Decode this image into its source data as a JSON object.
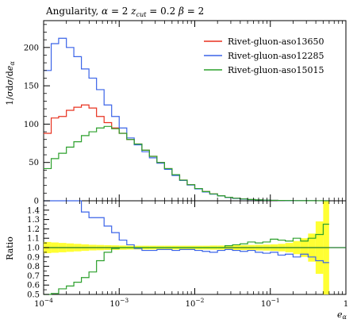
{
  "chart_data": {
    "type": "line",
    "title": "Angularity, α = 2 z_cut = 0.2 β = 2",
    "xlabel": "e_α",
    "ylabel": "1/σ dσ/de_α",
    "ratio_ylabel": "Ratio",
    "xscale": "log",
    "xlim": [
      0.0001,
      1
    ],
    "ylim": [
      0,
      235
    ],
    "ratio_ylim": [
      0.5,
      1.5
    ],
    "x_ticks": [
      "10^-4",
      "10^-3",
      "10^-2",
      "10^-1",
      "1"
    ],
    "y_ticks": [
      0,
      50,
      100,
      150,
      200
    ],
    "ratio_ticks": [
      "0.5",
      "0.6",
      "0.7",
      "0.8",
      "0.9",
      "1.0",
      "1.1",
      "1.2",
      "1.3",
      "1.4"
    ],
    "legend_position": "top-right",
    "bin_edges": [
      0.0001,
      0.000126,
      0.000158,
      0.0002,
      0.000251,
      0.000316,
      0.000398,
      0.000501,
      0.000631,
      0.000794,
      0.001,
      0.00126,
      0.00158,
      0.002,
      0.00251,
      0.00316,
      0.00398,
      0.00501,
      0.00631,
      0.00794,
      0.01,
      0.0126,
      0.0158,
      0.02,
      0.0251,
      0.0316,
      0.0398,
      0.0501,
      0.0631,
      0.0794,
      0.1,
      0.126,
      0.158,
      0.2,
      0.251,
      0.316,
      0.398,
      0.501,
      0.6
    ],
    "series": [
      {
        "name": "Rivet-gluon-aso13650",
        "color": "#e8311f",
        "values": [
          88,
          108,
          110,
          118,
          122,
          125,
          121,
          110,
          102,
          95,
          88,
          80,
          74,
          66,
          58,
          50,
          42,
          34,
          27,
          21,
          16,
          12,
          9,
          6.5,
          4.5,
          3.2,
          2.3,
          1.6,
          1.1,
          0.8,
          0.55,
          0.4,
          0.28,
          0.2,
          0.14,
          0.1,
          0.07,
          0.04
        ]
      },
      {
        "name": "Rivet-gluon-aso12285",
        "color": "#3b64e8",
        "values": [
          170,
          205,
          212,
          200,
          188,
          172,
          160,
          145,
          125,
          110,
          95,
          82,
          73,
          64,
          56,
          49,
          41,
          33,
          26.5,
          20.5,
          15.5,
          11.5,
          8.6,
          6.3,
          4.4,
          3.1,
          2.2,
          1.55,
          1.05,
          0.75,
          0.52,
          0.37,
          0.26,
          0.18,
          0.13,
          0.09,
          0.06,
          0.035
        ]
      },
      {
        "name": "Rivet-gluon-aso15015",
        "color": "#2ca02c",
        "values": [
          42,
          55,
          62,
          70,
          77,
          85,
          90,
          95,
          97,
          94,
          88,
          80,
          74,
          66,
          58,
          50,
          42,
          34,
          27,
          21,
          16,
          12,
          9,
          6.5,
          4.6,
          3.3,
          2.4,
          1.7,
          1.15,
          0.85,
          0.6,
          0.43,
          0.3,
          0.22,
          0.15,
          0.11,
          0.08,
          0.05
        ]
      }
    ],
    "ratio_series": [
      {
        "name": "Rivet-gluon-aso12285",
        "color": "#3b64e8",
        "values": [
          1.93,
          1.9,
          1.85,
          1.7,
          1.54,
          1.38,
          1.32,
          1.32,
          1.23,
          1.16,
          1.08,
          1.03,
          0.99,
          0.97,
          0.97,
          0.98,
          0.98,
          0.97,
          0.98,
          0.98,
          0.97,
          0.96,
          0.95,
          0.97,
          0.98,
          0.97,
          0.96,
          0.97,
          0.95,
          0.94,
          0.95,
          0.92,
          0.93,
          0.9,
          0.93,
          0.9,
          0.86,
          0.84
        ]
      },
      {
        "name": "Rivet-gluon-aso15015",
        "color": "#2ca02c",
        "values": [
          0.48,
          0.51,
          0.56,
          0.59,
          0.63,
          0.68,
          0.74,
          0.86,
          0.95,
          0.99,
          1.0,
          1.0,
          1.0,
          1.0,
          1.0,
          1.0,
          1.0,
          1.0,
          1.0,
          1.0,
          1.0,
          1.0,
          1.0,
          1.0,
          1.02,
          1.03,
          1.04,
          1.06,
          1.05,
          1.06,
          1.09,
          1.08,
          1.07,
          1.1,
          1.07,
          1.1,
          1.14,
          1.25
        ]
      }
    ],
    "ratio_band": {
      "color": "#ffff33",
      "halfwidths": [
        0.06,
        0.055,
        0.05,
        0.045,
        0.04,
        0.035,
        0.03,
        0.028,
        0.026,
        0.024,
        0.022,
        0.02,
        0.02,
        0.02,
        0.02,
        0.02,
        0.02,
        0.02,
        0.02,
        0.02,
        0.02,
        0.02,
        0.022,
        0.022,
        0.024,
        0.025,
        0.026,
        0.028,
        0.03,
        0.032,
        0.035,
        0.04,
        0.05,
        0.07,
        0.1,
        0.15,
        0.28,
        0.5
      ]
    }
  }
}
